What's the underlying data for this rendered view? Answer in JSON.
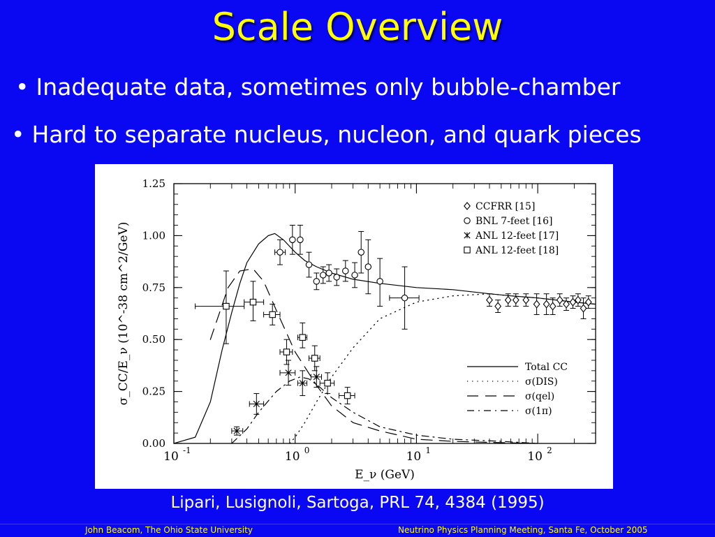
{
  "slide": {
    "title": "Scale Overview",
    "bullets": [
      "Inadequate data, sometimes only bubble-chamber",
      "Hard to separate nucleus, nucleon, and quark pieces"
    ],
    "bullet_symbol": "•",
    "caption": "Lipari, Lusignoli, Sartoga, PRL 74, 4384 (1995)",
    "footer_left": "John Beacom, The Ohio State University",
    "footer_right": "Neutrino Physics Planning Meeting, Santa Fe, October 2005"
  },
  "colors": {
    "background": "#0a08f2",
    "title": "#ffff00",
    "text": "#ffffff",
    "footer_text": "#ffff00"
  },
  "chart_data": {
    "type": "scatter",
    "title": "",
    "xlabel": "E_ν (GeV)",
    "ylabel": "σ_CC/E_ν (10^-38 cm^2/GeV)",
    "xscale": "log",
    "xlim": [
      0.1,
      300
    ],
    "ylim": [
      0,
      1.25
    ],
    "grid": false,
    "legend_placement": "top-right (data) and bottom-right (curves)",
    "y_ticks": [
      "0.00",
      "0.25",
      "0.50",
      "0.75",
      "1.00",
      "1.25"
    ],
    "x_ticks": [
      {
        "base": "10",
        "exp": "-1",
        "value": 0.1
      },
      {
        "base": "10",
        "exp": "0",
        "value": 1
      },
      {
        "base": "10",
        "exp": "1",
        "value": 10
      },
      {
        "base": "10",
        "exp": "2",
        "value": 100
      }
    ],
    "data_series": [
      {
        "name": "CCFRR [15]",
        "marker": "diamond",
        "points": [
          {
            "x": 40,
            "y": 0.69,
            "ylo": 0.66,
            "yhi": 0.72
          },
          {
            "x": 47,
            "y": 0.66,
            "ylo": 0.63,
            "yhi": 0.69
          },
          {
            "x": 57,
            "y": 0.69,
            "ylo": 0.66,
            "yhi": 0.72
          },
          {
            "x": 66,
            "y": 0.69,
            "ylo": 0.66,
            "yhi": 0.72
          },
          {
            "x": 80,
            "y": 0.69,
            "ylo": 0.66,
            "yhi": 0.72
          },
          {
            "x": 98,
            "y": 0.67,
            "ylo": 0.62,
            "yhi": 0.72
          },
          {
            "x": 118,
            "y": 0.67,
            "ylo": 0.62,
            "yhi": 0.72
          },
          {
            "x": 133,
            "y": 0.66,
            "ylo": 0.62,
            "yhi": 0.7
          },
          {
            "x": 152,
            "y": 0.69,
            "ylo": 0.66,
            "yhi": 0.72
          },
          {
            "x": 172,
            "y": 0.67,
            "ylo": 0.64,
            "yhi": 0.7
          },
          {
            "x": 195,
            "y": 0.68,
            "ylo": 0.65,
            "yhi": 0.71
          },
          {
            "x": 215,
            "y": 0.69,
            "ylo": 0.66,
            "yhi": 0.72
          },
          {
            "x": 238,
            "y": 0.65,
            "ylo": 0.6,
            "yhi": 0.7
          },
          {
            "x": 262,
            "y": 0.68,
            "ylo": 0.65,
            "yhi": 0.71
          }
        ]
      },
      {
        "name": "BNL 7-feet [16]",
        "marker": "circle",
        "points": [
          {
            "x": 0.75,
            "y": 0.92,
            "ylo": 0.86,
            "yhi": 0.98,
            "xlo": 0.68,
            "xhi": 0.83
          },
          {
            "x": 0.95,
            "y": 0.98,
            "ylo": 0.91,
            "yhi": 1.05
          },
          {
            "x": 1.1,
            "y": 0.98,
            "ylo": 0.91,
            "yhi": 1.05
          },
          {
            "x": 1.3,
            "y": 0.86,
            "ylo": 0.8,
            "yhi": 0.92
          },
          {
            "x": 1.5,
            "y": 0.78,
            "ylo": 0.74,
            "yhi": 0.82
          },
          {
            "x": 1.7,
            "y": 0.81,
            "ylo": 0.77,
            "yhi": 0.85
          },
          {
            "x": 1.9,
            "y": 0.82,
            "ylo": 0.78,
            "yhi": 0.86
          },
          {
            "x": 2.2,
            "y": 0.8,
            "ylo": 0.76,
            "yhi": 0.84
          },
          {
            "x": 2.6,
            "y": 0.83,
            "ylo": 0.78,
            "yhi": 0.88
          },
          {
            "x": 3.1,
            "y": 0.81,
            "ylo": 0.75,
            "yhi": 0.87
          },
          {
            "x": 3.5,
            "y": 0.92,
            "ylo": 0.82,
            "yhi": 1.02
          },
          {
            "x": 4.0,
            "y": 0.85,
            "ylo": 0.72,
            "yhi": 0.98
          },
          {
            "x": 5.0,
            "y": 0.78,
            "ylo": 0.66,
            "yhi": 0.89
          },
          {
            "x": 8.0,
            "y": 0.7,
            "ylo": 0.55,
            "yhi": 0.85,
            "xlo": 6.0,
            "xhi": 10.5
          }
        ]
      },
      {
        "name": "ANL 12-feet [17]",
        "marker": "star",
        "points": [
          {
            "x": 0.33,
            "y": 0.06,
            "ylo": 0.04,
            "yhi": 0.08,
            "xlo": 0.3,
            "xhi": 0.37
          },
          {
            "x": 0.48,
            "y": 0.19,
            "ylo": 0.14,
            "yhi": 0.24,
            "xlo": 0.42,
            "xhi": 0.55
          },
          {
            "x": 0.88,
            "y": 0.34,
            "ylo": 0.28,
            "yhi": 0.4,
            "xlo": 0.75,
            "xhi": 1.0
          },
          {
            "x": 1.15,
            "y": 0.29,
            "ylo": 0.23,
            "yhi": 0.35,
            "xlo": 1.05,
            "xhi": 1.25
          },
          {
            "x": 1.5,
            "y": 0.32,
            "ylo": 0.27,
            "yhi": 0.37,
            "xlo": 1.35,
            "xhi": 1.65
          }
        ]
      },
      {
        "name": "ANL 12-feet [18]",
        "marker": "square",
        "points": [
          {
            "x": 0.27,
            "y": 0.66,
            "ylo": 0.48,
            "yhi": 0.83,
            "xlo": 0.15,
            "xhi": 0.38
          },
          {
            "x": 0.45,
            "y": 0.68,
            "ylo": 0.59,
            "yhi": 0.78,
            "xlo": 0.38,
            "xhi": 0.55
          },
          {
            "x": 0.65,
            "y": 0.62,
            "ylo": 0.57,
            "yhi": 0.67,
            "xlo": 0.55,
            "xhi": 0.75
          },
          {
            "x": 0.85,
            "y": 0.44,
            "ylo": 0.38,
            "yhi": 0.5,
            "xlo": 0.75,
            "xhi": 0.95
          },
          {
            "x": 1.15,
            "y": 0.51,
            "ylo": 0.46,
            "yhi": 0.58,
            "xlo": 1.05,
            "xhi": 1.25
          },
          {
            "x": 1.45,
            "y": 0.41,
            "ylo": 0.35,
            "yhi": 0.47,
            "xlo": 1.3,
            "xhi": 1.6
          },
          {
            "x": 1.85,
            "y": 0.29,
            "ylo": 0.24,
            "yhi": 0.34,
            "xlo": 1.6,
            "xhi": 2.1
          },
          {
            "x": 2.7,
            "y": 0.23,
            "ylo": 0.19,
            "yhi": 0.27,
            "xlo": 2.3,
            "xhi": 3.1
          }
        ]
      }
    ],
    "curves": [
      {
        "name": "Total CC",
        "style": "solid",
        "points": [
          [
            0.1,
            0.0
          ],
          [
            0.15,
            0.03
          ],
          [
            0.2,
            0.2
          ],
          [
            0.25,
            0.45
          ],
          [
            0.3,
            0.63
          ],
          [
            0.35,
            0.77
          ],
          [
            0.4,
            0.87
          ],
          [
            0.5,
            0.96
          ],
          [
            0.6,
            1.0
          ],
          [
            0.68,
            1.01
          ],
          [
            0.8,
            0.98
          ],
          [
            1.0,
            0.92
          ],
          [
            1.2,
            0.88
          ],
          [
            1.5,
            0.85
          ],
          [
            2.0,
            0.82
          ],
          [
            3.0,
            0.79
          ],
          [
            5.0,
            0.77
          ],
          [
            10,
            0.75
          ],
          [
            20,
            0.74
          ],
          [
            40,
            0.72
          ],
          [
            60,
            0.71
          ],
          [
            100,
            0.7
          ],
          [
            200,
            0.68
          ],
          [
            300,
            0.67
          ]
        ]
      },
      {
        "name": "σ(DIS)",
        "style": "dotted",
        "points": [
          [
            0.9,
            0.0
          ],
          [
            1.0,
            0.03
          ],
          [
            1.2,
            0.1
          ],
          [
            1.5,
            0.2
          ],
          [
            2.0,
            0.32
          ],
          [
            3.0,
            0.46
          ],
          [
            5.0,
            0.6
          ],
          [
            10,
            0.68
          ],
          [
            20,
            0.71
          ],
          [
            40,
            0.72
          ],
          [
            60,
            0.71
          ],
          [
            100,
            0.7
          ],
          [
            200,
            0.68
          ],
          [
            300,
            0.67
          ]
        ]
      },
      {
        "name": "σ(qel)",
        "style": "dashed",
        "points": [
          [
            0.2,
            0.5
          ],
          [
            0.28,
            0.75
          ],
          [
            0.35,
            0.83
          ],
          [
            0.45,
            0.84
          ],
          [
            0.55,
            0.78
          ],
          [
            0.7,
            0.64
          ],
          [
            1.0,
            0.44
          ],
          [
            1.5,
            0.28
          ],
          [
            2.0,
            0.18
          ],
          [
            3.0,
            0.1
          ],
          [
            5.0,
            0.06
          ],
          [
            10,
            0.02
          ],
          [
            20,
            0.01
          ],
          [
            40,
            0.005
          ],
          [
            100,
            0.0
          ]
        ]
      },
      {
        "name": "σ(1π)",
        "style": "dashdot",
        "points": [
          [
            0.3,
            0.0
          ],
          [
            0.4,
            0.07
          ],
          [
            0.5,
            0.15
          ],
          [
            0.7,
            0.25
          ],
          [
            0.9,
            0.3
          ],
          [
            1.1,
            0.32
          ],
          [
            1.3,
            0.31
          ],
          [
            1.6,
            0.27
          ],
          [
            2.0,
            0.22
          ],
          [
            3.0,
            0.15
          ],
          [
            5.0,
            0.08
          ],
          [
            10,
            0.04
          ],
          [
            20,
            0.02
          ],
          [
            50,
            0.01
          ],
          [
            100,
            0.0
          ]
        ]
      }
    ]
  }
}
